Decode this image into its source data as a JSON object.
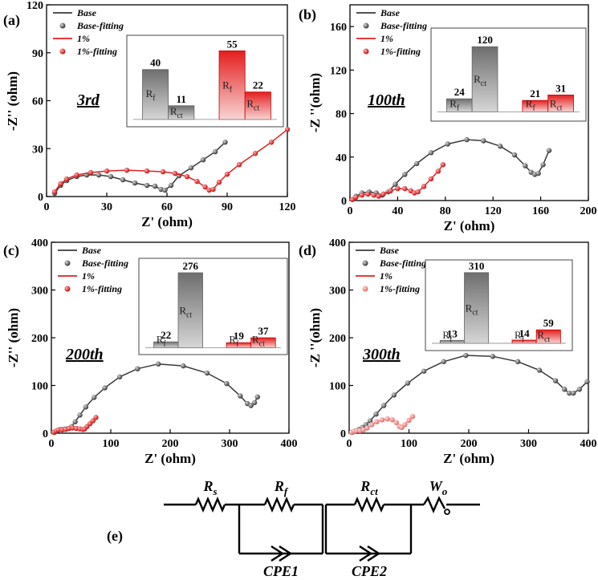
{
  "chart_data": [
    {
      "type": "scatter",
      "panel_label": "(a)",
      "cycle_label": "3rd",
      "xlabel": "Z' (ohm)",
      "ylabel": "-Z'' (ohm)",
      "xlim": [
        0,
        120
      ],
      "ylim": [
        0,
        120
      ],
      "xticks": [
        0,
        30,
        60,
        90,
        120
      ],
      "yticks": [
        0,
        30,
        60,
        90,
        120
      ],
      "legend": [
        "Base",
        "Base-fitting",
        "1%",
        "1%-fitting"
      ],
      "series": [
        {
          "name": "Base",
          "color": "#3a3a3a",
          "x": [
            4,
            7,
            10,
            15,
            20,
            26,
            32,
            38,
            44,
            50,
            54,
            57,
            59,
            62,
            66,
            72,
            78,
            84,
            89
          ],
          "y": [
            2,
            7,
            10,
            12.5,
            13.5,
            13.5,
            12.5,
            10.5,
            8.5,
            7,
            6.5,
            4.5,
            4,
            7,
            13,
            18,
            23,
            28,
            34
          ]
        },
        {
          "name": "1%",
          "color": "#e02020",
          "x": [
            4,
            7,
            10,
            15,
            22,
            30,
            40,
            50,
            58,
            64,
            70,
            75,
            79,
            81,
            83,
            86,
            90,
            96,
            104,
            112,
            120
          ],
          "y": [
            3,
            8,
            11,
            13.5,
            15,
            16,
            16.5,
            16,
            15.5,
            14.5,
            12.5,
            9.5,
            6,
            4,
            4.5,
            9,
            14,
            20,
            27,
            34,
            42
          ]
        }
      ],
      "inset": {
        "bars": [
          {
            "group": "Base",
            "label": "R",
            "sub": "f",
            "value": 40
          },
          {
            "group": "Base",
            "label": "R",
            "sub": "ct",
            "value": 11
          },
          {
            "group": "1%",
            "label": "R",
            "sub": "f",
            "value": 55
          },
          {
            "group": "1%",
            "label": "R",
            "sub": "ct",
            "value": 22
          }
        ]
      }
    },
    {
      "type": "scatter",
      "panel_label": "(b)",
      "cycle_label": "100th",
      "xlabel": "Z' (ohm)",
      "ylabel": "-Z ''(ohm)",
      "xlim": [
        0,
        200
      ],
      "ylim": [
        0,
        180
      ],
      "xticks": [
        0,
        40,
        80,
        120,
        160,
        200
      ],
      "yticks": [
        0,
        40,
        80,
        120,
        160
      ],
      "legend": [
        "Base",
        "Base-fitting",
        "1%",
        "1%-fitting"
      ],
      "series": [
        {
          "name": "Base",
          "color": "#3a3a3a",
          "x": [
            2,
            5,
            10,
            16,
            22,
            27,
            32,
            38,
            46,
            56,
            68,
            82,
            98,
            112,
            126,
            138,
            147,
            152,
            155,
            158,
            162,
            167
          ],
          "y": [
            1,
            4,
            7,
            8,
            7,
            5,
            8,
            15,
            24,
            34,
            44,
            52,
            56,
            55,
            50,
            42,
            32,
            26,
            24,
            25,
            33,
            46
          ]
        },
        {
          "name": "1%",
          "color": "#e02020",
          "x": [
            2,
            5,
            10,
            15,
            20,
            24,
            28,
            34,
            40,
            46,
            51,
            54,
            57,
            62,
            68,
            74,
            78
          ],
          "y": [
            1,
            3,
            5,
            6,
            5,
            4,
            6,
            9,
            11,
            11,
            9,
            7,
            8,
            13,
            20,
            27,
            33
          ]
        }
      ],
      "inset": {
        "bars": [
          {
            "group": "Base",
            "label": "R",
            "sub": "f",
            "value": 24
          },
          {
            "group": "Base",
            "label": "R",
            "sub": "ct",
            "value": 120
          },
          {
            "group": "1%",
            "label": "R",
            "sub": "f",
            "value": 21
          },
          {
            "group": "1%",
            "label": "R",
            "sub": "ct",
            "value": 31
          }
        ]
      }
    },
    {
      "type": "scatter",
      "panel_label": "(c)",
      "cycle_label": "200th",
      "xlabel": "Z' (ohm)",
      "ylabel": "-Z'' (ohm)",
      "xlim": [
        0,
        400
      ],
      "ylim": [
        0,
        400
      ],
      "xticks": [
        0,
        100,
        200,
        300,
        400
      ],
      "yticks": [
        0,
        100,
        200,
        300,
        400
      ],
      "legend": [
        "Base",
        "Base-fitting",
        "1%",
        "1%-fitting"
      ],
      "series": [
        {
          "name": "Base",
          "color": "#3a3a3a",
          "x": [
            5,
            10,
            16,
            22,
            28,
            34,
            40,
            48,
            58,
            72,
            90,
            115,
            145,
            180,
            222,
            262,
            295,
            318,
            330,
            336,
            342,
            347
          ],
          "y": [
            2,
            5,
            8,
            9,
            10,
            14,
            24,
            38,
            55,
            75,
            95,
            118,
            135,
            145,
            141,
            126,
            104,
            78,
            62,
            58,
            64,
            76
          ]
        },
        {
          "name": "1%",
          "color": "#e02020",
          "x": [
            4,
            8,
            12,
            18,
            24,
            30,
            36,
            42,
            48,
            53,
            56,
            60,
            65,
            70,
            75
          ],
          "y": [
            2,
            5,
            7,
            7,
            8,
            10,
            11,
            10,
            9,
            8,
            9,
            14,
            20,
            26,
            33
          ]
        }
      ],
      "inset": {
        "bars": [
          {
            "group": "Base",
            "label": "R",
            "sub": "f",
            "value": 22
          },
          {
            "group": "Base",
            "label": "R",
            "sub": "ct",
            "value": 276
          },
          {
            "group": "1%",
            "label": "R",
            "sub": "f",
            "value": 19
          },
          {
            "group": "1%",
            "label": "R",
            "sub": "ct",
            "value": 37
          }
        ]
      }
    },
    {
      "type": "scatter",
      "panel_label": "(d)",
      "cycle_label": "300th",
      "xlabel": "Z' (ohm)",
      "ylabel": "-Z ''(ohm)",
      "xlim": [
        0,
        400
      ],
      "ylim": [
        0,
        400
      ],
      "xticks": [
        0,
        100,
        200,
        300,
        400
      ],
      "yticks": [
        0,
        100,
        200,
        300,
        400
      ],
      "legend": [
        "Base",
        "Base-fitting",
        "1%",
        "1%-fitting"
      ],
      "series": [
        {
          "name": "Base",
          "color": "#3a3a3a",
          "x": [
            5,
            10,
            16,
            22,
            28,
            35,
            45,
            58,
            75,
            98,
            125,
            158,
            195,
            240,
            282,
            318,
            345,
            360,
            368,
            375,
            385,
            398
          ],
          "y": [
            2,
            5,
            8,
            12,
            18,
            26,
            40,
            58,
            80,
            105,
            130,
            150,
            163,
            161,
            150,
            132,
            110,
            92,
            84,
            84,
            92,
            108
          ]
        },
        {
          "name": "1%",
          "color": "#e87878",
          "x": [
            4,
            8,
            12,
            18,
            24,
            30,
            38,
            46,
            55,
            64,
            72,
            79,
            84,
            88,
            93,
            100,
            106
          ],
          "y": [
            2,
            4,
            5,
            5,
            7,
            11,
            18,
            24,
            28,
            30,
            28,
            22,
            14,
            12,
            18,
            27,
            35
          ]
        }
      ],
      "inset": {
        "bars": [
          {
            "group": "Base",
            "label": "R",
            "sub": "f",
            "value": 13
          },
          {
            "group": "Base",
            "label": "R",
            "sub": "ct",
            "value": 310
          },
          {
            "group": "1%",
            "label": "R",
            "sub": "f",
            "value": 14
          },
          {
            "group": "1%",
            "label": "R",
            "sub": "ct",
            "value": 59
          }
        ]
      }
    }
  ],
  "circuit": {
    "panel_label": "(e)",
    "Rs": {
      "main": "R",
      "sub": "s"
    },
    "Rf": {
      "main": "R",
      "sub": "f"
    },
    "Rct": {
      "main": "R",
      "sub": "ct"
    },
    "Wo": {
      "main": "W",
      "sub": "o"
    },
    "cpe1": "CPE1",
    "cpe2": "CPE2"
  }
}
